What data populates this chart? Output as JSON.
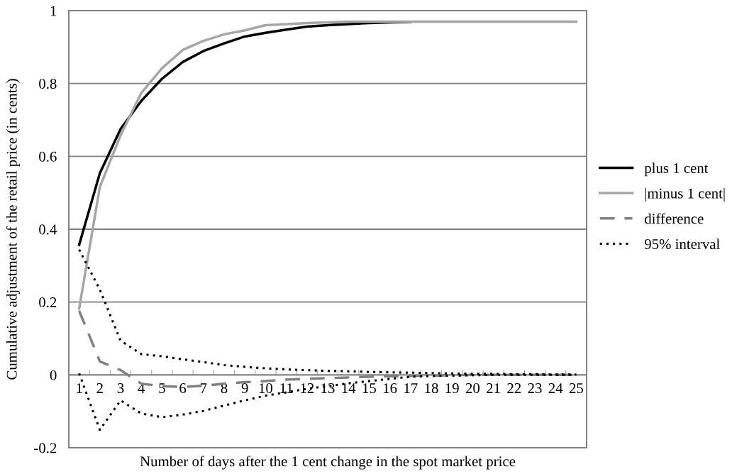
{
  "chart_data": {
    "type": "line",
    "xlabel": "Number of days after the 1 cent change in the spot market price",
    "ylabel": "Cumulative adjustment of the retail price (in cents)",
    "categories": [
      "1",
      "2",
      "3",
      "4",
      "5",
      "6",
      "7",
      "8",
      "9",
      "10",
      "11",
      "12",
      "13",
      "14",
      "15",
      "16",
      "17",
      "18",
      "19",
      "20",
      "21",
      "22",
      "23",
      "24",
      "25"
    ],
    "series": [
      {
        "name": "plus 1 cent",
        "color": "#000000",
        "line_style": "solid",
        "values": [
          0.357,
          0.554,
          0.675,
          0.752,
          0.813,
          0.859,
          0.889,
          0.91,
          0.929,
          0.939,
          0.948,
          0.956,
          0.96,
          0.963,
          0.966,
          0.968,
          0.969,
          null,
          null,
          null,
          null,
          null,
          null,
          null,
          null
        ]
      },
      {
        "name": "|minus 1 cent|",
        "color": "#a6a6a6",
        "line_style": "solid",
        "values": [
          0.182,
          0.516,
          0.658,
          0.774,
          0.842,
          0.892,
          0.917,
          0.935,
          0.946,
          0.96,
          0.963,
          0.966,
          0.968,
          0.97,
          0.97,
          0.97,
          0.97,
          0.97,
          0.97,
          0.97,
          0.97,
          0.97,
          0.97,
          0.97,
          0.97
        ]
      },
      {
        "name": "difference",
        "color": "#808080",
        "line_style": "dashed",
        "values": [
          0.176,
          0.037,
          0.013,
          -0.024,
          -0.031,
          -0.033,
          -0.03,
          -0.024,
          -0.02,
          -0.017,
          -0.013,
          -0.011,
          -0.009,
          -0.007,
          -0.005,
          -0.004,
          -0.003,
          -0.002,
          -0.001,
          0.0,
          0.0,
          0.0,
          0.0,
          0.0,
          0.0
        ]
      },
      {
        "name": "95% interval",
        "color": "#000000",
        "line_style": "dotted",
        "values": [
          0.344,
          0.234,
          0.094,
          0.057,
          0.051,
          0.043,
          0.035,
          0.027,
          0.022,
          0.018,
          0.015,
          0.013,
          0.011,
          0.01,
          0.008,
          0.007,
          0.006,
          0.005,
          0.004,
          0.003,
          0.003,
          0.002,
          0.002,
          0.001,
          0.001
        ]
      },
      {
        "color": "#000000",
        "line_style": "dotted",
        "values": [
          0.004,
          -0.151,
          -0.07,
          -0.106,
          -0.116,
          -0.109,
          -0.099,
          -0.084,
          -0.07,
          -0.057,
          -0.048,
          -0.038,
          -0.031,
          -0.023,
          -0.017,
          -0.011,
          -0.005,
          -0.003,
          -0.002,
          -0.001,
          0.0,
          0.0,
          0.0,
          0.0,
          0.0
        ]
      }
    ],
    "ylim": [
      -0.2,
      1
    ],
    "yticks": [
      -0.2,
      0,
      0.2,
      0.4,
      0.6,
      0.8,
      1
    ],
    "grid": "y",
    "legend": "right",
    "marker": "none"
  }
}
